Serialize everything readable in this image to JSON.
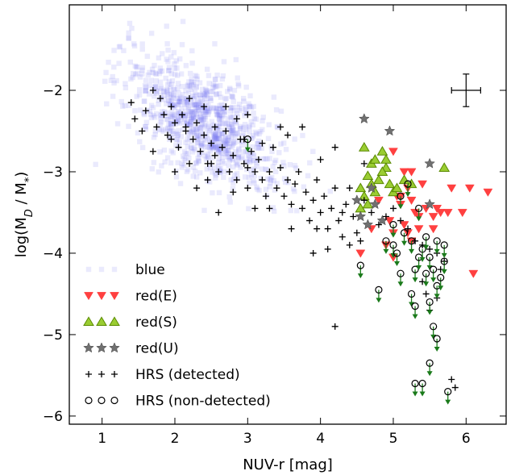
{
  "chart_data": {
    "type": "scatter",
    "xlabel": "NUV-r [mag]",
    "ylabel": "log(M",
    "ylabel_sub": "D",
    "ylabel_tail": " / M",
    "ylabel_sub2": "*",
    "ylabel_close": ")",
    "xlim": [
      0.55,
      6.55
    ],
    "ylim": [
      -6.1,
      -0.95
    ],
    "xticks": [
      1,
      2,
      3,
      4,
      5,
      6
    ],
    "yticks": [
      -2,
      -3,
      -4,
      -5,
      -6
    ],
    "xtick_labels": [
      "1",
      "2",
      "3",
      "4",
      "5",
      "6"
    ],
    "ytick_labels": [
      "−2",
      "−3",
      "−4",
      "−5",
      "−6"
    ],
    "grid": false,
    "legend_position": "bottom-left",
    "error_bar": {
      "x": 6.0,
      "y": -2.0,
      "xerr": 0.2,
      "yerr": 0.2
    },
    "colors": {
      "blue": "#6c6cf2",
      "red_E": "#ff4040",
      "red_S": "#9acd32",
      "red_S_edge": "#5a8a00",
      "red_U": "#707070",
      "hrs": "#000000",
      "upper_limit_arrow": "#1a7a1a"
    },
    "blue_cloud": {
      "note_values": "blue points drawn as a dense cloud; centre and spread in data units",
      "center": [
        2.4,
        -2.4
      ],
      "spread": [
        0.55,
        0.45
      ],
      "slope": -0.45,
      "count": 900,
      "seed": 7
    },
    "series": [
      {
        "name": "blue",
        "marker": "square",
        "points": []
      },
      {
        "name": "red(E)",
        "marker": "triangle-down",
        "points": [
          [
            4.55,
            -4.0
          ],
          [
            4.7,
            -3.7
          ],
          [
            4.95,
            -3.6
          ],
          [
            5.0,
            -3.75
          ],
          [
            5.05,
            -3.3
          ],
          [
            5.1,
            -3.4
          ],
          [
            5.15,
            -3.0
          ],
          [
            5.2,
            -3.2
          ],
          [
            5.25,
            -3.35
          ],
          [
            5.3,
            -3.5
          ],
          [
            5.35,
            -3.55
          ],
          [
            5.45,
            -3.45
          ],
          [
            5.55,
            -3.55
          ],
          [
            5.65,
            -3.5
          ],
          [
            5.75,
            -3.5
          ],
          [
            5.8,
            -3.2
          ],
          [
            5.95,
            -3.5
          ],
          [
            6.05,
            -3.2
          ],
          [
            6.1,
            -4.25
          ],
          [
            6.3,
            -3.25
          ],
          [
            5.0,
            -2.75
          ],
          [
            5.4,
            -3.15
          ],
          [
            5.25,
            -3.0
          ],
          [
            5.1,
            -3.3
          ],
          [
            4.9,
            -3.9
          ],
          [
            5.2,
            -3.75
          ],
          [
            5.35,
            -3.7
          ],
          [
            5.6,
            -3.45
          ],
          [
            5.15,
            -3.65
          ],
          [
            4.8,
            -3.35
          ],
          [
            5.55,
            -3.7
          ],
          [
            5.0,
            -4.05
          ],
          [
            5.25,
            -3.85
          ]
        ],
        "upper_limits": []
      },
      {
        "name": "red(S)",
        "marker": "triangle-up",
        "points": [
          [
            4.55,
            -3.2
          ],
          [
            4.6,
            -3.3
          ],
          [
            4.65,
            -3.05
          ],
          [
            4.7,
            -2.9
          ],
          [
            4.75,
            -2.85
          ],
          [
            4.8,
            -3.1
          ],
          [
            4.85,
            -2.75
          ],
          [
            4.9,
            -2.95
          ],
          [
            4.95,
            -3.15
          ],
          [
            5.0,
            -3.25
          ],
          [
            5.05,
            -3.2
          ],
          [
            5.15,
            -3.1
          ],
          [
            5.25,
            -3.15
          ],
          [
            4.6,
            -2.7
          ],
          [
            4.7,
            -3.15
          ],
          [
            4.85,
            -3.0
          ],
          [
            4.55,
            -3.45
          ],
          [
            4.9,
            -2.85
          ],
          [
            5.7,
            -2.95
          ],
          [
            4.65,
            -3.4
          ],
          [
            4.75,
            -3.25
          ]
        ]
      },
      {
        "name": "red(U)",
        "marker": "star",
        "points": [
          [
            4.6,
            -2.35
          ],
          [
            4.95,
            -2.5
          ],
          [
            5.5,
            -2.9
          ],
          [
            4.5,
            -3.35
          ],
          [
            4.55,
            -3.55
          ],
          [
            4.75,
            -3.4
          ],
          [
            4.85,
            -3.6
          ],
          [
            5.5,
            -3.4
          ],
          [
            4.7,
            -3.2
          ],
          [
            4.65,
            -3.65
          ]
        ]
      },
      {
        "name": "HRS (detected)",
        "marker": "plus",
        "points": [
          [
            1.4,
            -2.15
          ],
          [
            1.45,
            -2.35
          ],
          [
            1.55,
            -2.5
          ],
          [
            1.6,
            -2.25
          ],
          [
            1.7,
            -2.0
          ],
          [
            1.75,
            -2.45
          ],
          [
            1.8,
            -2.1
          ],
          [
            1.85,
            -2.3
          ],
          [
            1.9,
            -2.55
          ],
          [
            1.95,
            -2.2
          ],
          [
            2.0,
            -2.4
          ],
          [
            2.05,
            -2.7
          ],
          [
            2.1,
            -2.3
          ],
          [
            2.15,
            -2.5
          ],
          [
            2.2,
            -2.9
          ],
          [
            2.25,
            -2.6
          ],
          [
            2.3,
            -2.4
          ],
          [
            2.35,
            -2.75
          ],
          [
            2.4,
            -2.55
          ],
          [
            2.45,
            -2.9
          ],
          [
            2.5,
            -2.65
          ],
          [
            2.55,
            -2.8
          ],
          [
            2.6,
            -3.0
          ],
          [
            2.65,
            -2.7
          ],
          [
            2.7,
            -2.5
          ],
          [
            2.75,
            -3.0
          ],
          [
            2.8,
            -2.8
          ],
          [
            2.85,
            -3.1
          ],
          [
            2.9,
            -2.6
          ],
          [
            2.95,
            -2.9
          ],
          [
            3.0,
            -3.2
          ],
          [
            3.05,
            -2.75
          ],
          [
            3.1,
            -3.0
          ],
          [
            3.15,
            -2.85
          ],
          [
            3.2,
            -3.1
          ],
          [
            3.25,
            -3.3
          ],
          [
            3.3,
            -3.0
          ],
          [
            3.35,
            -2.7
          ],
          [
            3.4,
            -3.2
          ],
          [
            3.45,
            -2.95
          ],
          [
            3.5,
            -3.3
          ],
          [
            3.55,
            -3.1
          ],
          [
            3.6,
            -3.4
          ],
          [
            3.65,
            -3.15
          ],
          [
            3.7,
            -3.0
          ],
          [
            3.75,
            -3.45
          ],
          [
            3.8,
            -3.25
          ],
          [
            3.85,
            -3.6
          ],
          [
            3.9,
            -3.35
          ],
          [
            3.95,
            -3.1
          ],
          [
            4.0,
            -3.5
          ],
          [
            4.05,
            -3.3
          ],
          [
            4.1,
            -3.7
          ],
          [
            4.15,
            -3.45
          ],
          [
            4.2,
            -3.2
          ],
          [
            4.25,
            -3.6
          ],
          [
            4.3,
            -3.8
          ],
          [
            4.35,
            -3.4
          ],
          [
            4.4,
            -3.9
          ],
          [
            4.45,
            -3.55
          ],
          [
            4.5,
            -3.75
          ],
          [
            4.55,
            -3.85
          ],
          [
            4.6,
            -3.35
          ],
          [
            4.7,
            -3.5
          ],
          [
            4.8,
            -3.65
          ],
          [
            4.9,
            -3.55
          ],
          [
            5.0,
            -3.45
          ],
          [
            5.1,
            -3.6
          ],
          [
            5.2,
            -3.7
          ],
          [
            5.3,
            -3.85
          ],
          [
            5.4,
            -3.9
          ],
          [
            5.5,
            -3.95
          ],
          [
            5.6,
            -4.0
          ],
          [
            5.7,
            -4.1
          ],
          [
            5.8,
            -5.55
          ],
          [
            5.85,
            -5.65
          ],
          [
            1.7,
            -2.75
          ],
          [
            2.5,
            -2.9
          ],
          [
            2.6,
            -3.5
          ],
          [
            3.0,
            -2.3
          ],
          [
            3.45,
            -2.45
          ],
          [
            3.75,
            -2.45
          ],
          [
            4.0,
            -2.85
          ],
          [
            4.2,
            -2.7
          ],
          [
            4.6,
            -2.9
          ],
          [
            4.2,
            -4.9
          ],
          [
            2.0,
            -3.0
          ],
          [
            2.3,
            -3.2
          ],
          [
            3.1,
            -3.45
          ],
          [
            3.3,
            -3.45
          ],
          [
            3.6,
            -3.7
          ],
          [
            3.9,
            -4.0
          ],
          [
            4.1,
            -3.95
          ],
          [
            2.8,
            -3.25
          ],
          [
            2.45,
            -3.1
          ],
          [
            3.95,
            -3.7
          ],
          [
            4.4,
            -3.2
          ],
          [
            4.3,
            -3.5
          ],
          [
            5.4,
            -4.35
          ],
          [
            5.5,
            -4.7
          ],
          [
            5.6,
            -4.55
          ],
          [
            5.65,
            -4.2
          ],
          [
            5.45,
            -4.5
          ],
          [
            1.95,
            -2.6
          ],
          [
            2.2,
            -2.1
          ],
          [
            2.15,
            -2.45
          ],
          [
            2.7,
            -2.2
          ],
          [
            2.85,
            -2.35
          ],
          [
            3.55,
            -2.55
          ],
          [
            3.2,
            -2.65
          ],
          [
            3.0,
            -2.95
          ],
          [
            2.95,
            -2.6
          ],
          [
            2.4,
            -2.2
          ],
          [
            2.55,
            -2.45
          ]
        ]
      },
      {
        "name": "HRS (non-detected)",
        "marker": "circle",
        "points": [
          [
            3.0,
            -2.6
          ],
          [
            4.55,
            -4.15
          ],
          [
            4.8,
            -4.45
          ],
          [
            4.9,
            -3.85
          ],
          [
            5.0,
            -3.9
          ],
          [
            5.05,
            -4.0
          ],
          [
            5.1,
            -4.25
          ],
          [
            5.15,
            -3.75
          ],
          [
            5.2,
            -3.15
          ],
          [
            5.25,
            -3.85
          ],
          [
            5.25,
            -4.5
          ],
          [
            5.3,
            -4.2
          ],
          [
            5.3,
            -4.65
          ],
          [
            5.35,
            -4.05
          ],
          [
            5.4,
            -3.95
          ],
          [
            5.45,
            -3.8
          ],
          [
            5.45,
            -4.25
          ],
          [
            5.5,
            -4.05
          ],
          [
            5.5,
            -4.6
          ],
          [
            5.55,
            -4.2
          ],
          [
            5.55,
            -4.9
          ],
          [
            5.6,
            -4.4
          ],
          [
            5.6,
            -5.05
          ],
          [
            5.65,
            -4.3
          ],
          [
            5.7,
            -3.9
          ],
          [
            5.7,
            -4.1
          ],
          [
            5.5,
            -5.35
          ],
          [
            5.4,
            -5.6
          ],
          [
            5.3,
            -5.6
          ],
          [
            5.75,
            -5.7
          ],
          [
            5.1,
            -3.3
          ],
          [
            5.0,
            -3.65
          ],
          [
            5.35,
            -3.45
          ],
          [
            5.6,
            -3.85
          ]
        ]
      }
    ],
    "legend": [
      {
        "label": "blue",
        "marker": "square"
      },
      {
        "label": "red(E)",
        "marker": "triangle-down"
      },
      {
        "label": "red(S)",
        "marker": "triangle-up"
      },
      {
        "label": "red(U)",
        "marker": "star"
      },
      {
        "label": "HRS (detected)",
        "marker": "plus"
      },
      {
        "label": "HRS (non-detected)",
        "marker": "circle"
      }
    ]
  }
}
